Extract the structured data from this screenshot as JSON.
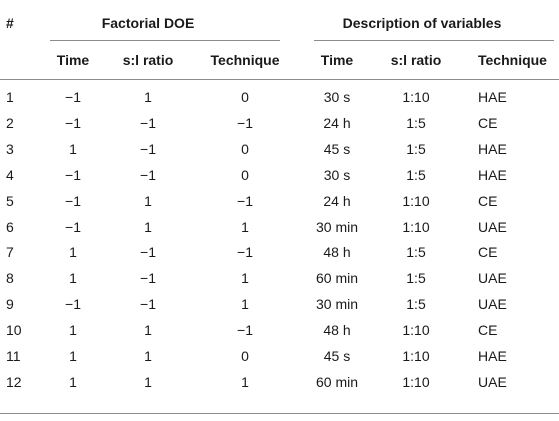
{
  "table": {
    "group_headers": [
      "#",
      "Factorial DOE",
      "Description of variables"
    ],
    "column_headers": [
      "Time",
      "s:l ratio",
      "Technique",
      "Time",
      "s:l ratio",
      "Technique"
    ],
    "rows": [
      [
        "1",
        "−1",
        "1",
        "0",
        "30 s",
        "1:10",
        "HAE"
      ],
      [
        "2",
        "−1",
        "−1",
        "−1",
        "24 h",
        "1:5",
        "CE"
      ],
      [
        "3",
        "1",
        "−1",
        "0",
        "45 s",
        "1:5",
        "HAE"
      ],
      [
        "4",
        "−1",
        "−1",
        "0",
        "30 s",
        "1:5",
        "HAE"
      ],
      [
        "5",
        "−1",
        "1",
        "−1",
        "24 h",
        "1:10",
        "CE"
      ],
      [
        "6",
        "−1",
        "1",
        "1",
        "30 min",
        "1:10",
        "UAE"
      ],
      [
        "7",
        "1",
        "−1",
        "−1",
        "48 h",
        "1:5",
        "CE"
      ],
      [
        "8",
        "1",
        "−1",
        "1",
        "60 min",
        "1:5",
        "UAE"
      ],
      [
        "9",
        "−1",
        "−1",
        "1",
        "30 min",
        "1:5",
        "UAE"
      ],
      [
        "10",
        "1",
        "1",
        "−1",
        "48 h",
        "1:10",
        "CE"
      ],
      [
        "11",
        "1",
        "1",
        "0",
        "45 s",
        "1:10",
        "HAE"
      ],
      [
        "12",
        "1",
        "1",
        "1",
        "60 min",
        "1:10",
        "UAE"
      ]
    ]
  }
}
